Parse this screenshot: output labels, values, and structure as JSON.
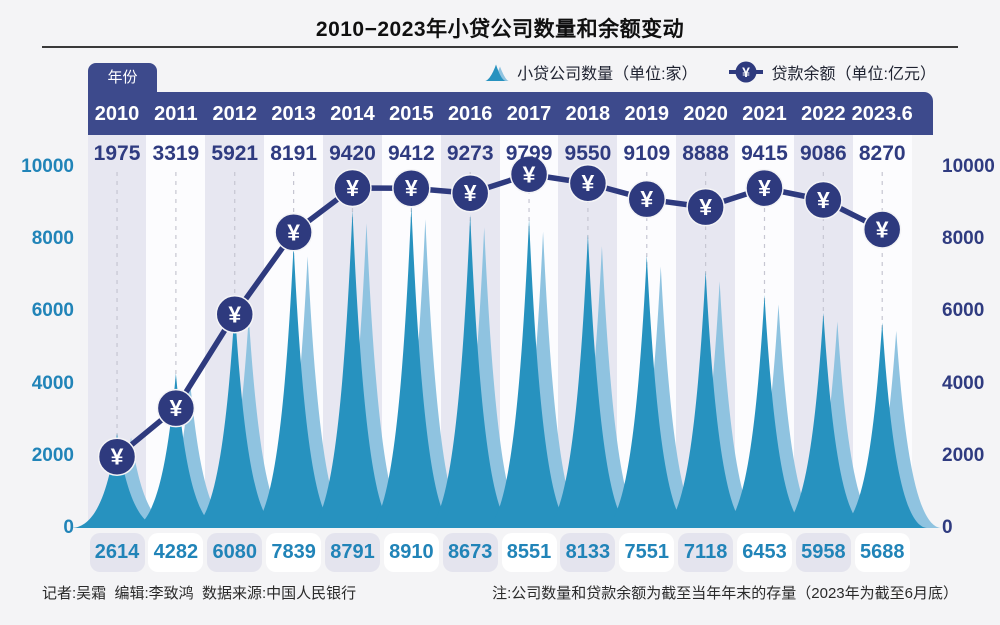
{
  "title": "2010−2023年小贷公司数量和余额变动",
  "year_tab_label": "年份",
  "legend": {
    "company_count_label": "小贷公司数量（单位:家）",
    "loan_balance_label": "贷款余额（单位:亿元）"
  },
  "chart_data": {
    "type": "combo",
    "categories": [
      "2010",
      "2011",
      "2012",
      "2013",
      "2014",
      "2015",
      "2016",
      "2017",
      "2018",
      "2019",
      "2020",
      "2021",
      "2022",
      "2023.6"
    ],
    "series": [
      {
        "name": "小贷公司数量",
        "unit": "家",
        "type": "area-spike",
        "values": [
          2614,
          4282,
          6080,
          7839,
          8791,
          8910,
          8673,
          8551,
          8133,
          7551,
          7118,
          6453,
          5958,
          5688
        ]
      },
      {
        "name": "贷款余额",
        "unit": "亿元",
        "type": "line",
        "values": [
          1975,
          3319,
          5921,
          8191,
          9420,
          9412,
          9273,
          9799,
          9550,
          9109,
          8888,
          9415,
          9086,
          8270
        ]
      }
    ],
    "ylim": [
      0,
      10000
    ],
    "axis_ticks": [
      "10000",
      "8000",
      "6000",
      "4000",
      "2000",
      "0"
    ],
    "left_axis_series": "小贷公司数量",
    "right_axis_series": "贷款余额",
    "grid": "dashed-vertical-guides",
    "legend_position": "top-right"
  },
  "footer": {
    "credits": "记者:吴霜  编辑:李致鸿  数据来源:中国人民银行",
    "note": "注:公司数量和贷款余额为截至当年年末的存量（2023年为截至6月底）"
  },
  "colors": {
    "navy": "#2e3a7e",
    "band_navy": "#3d4a8c",
    "top_value_text": "#2f3b80",
    "teal_text": "#2184b8",
    "spike_dark": "#2792bf",
    "spike_light": "#8fc3e0",
    "stripe_lavender": "#e7e7f1",
    "stripe_white": "#fcfcfe",
    "box_lavender": "#e4e4ee",
    "box_white": "#ffffff",
    "guide_dash": "#c6c6d2",
    "background": "#f4f4f6",
    "marker_glyph": "#ffffff"
  }
}
